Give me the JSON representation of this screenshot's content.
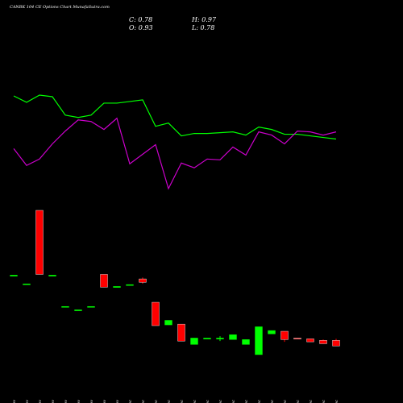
{
  "chart_data": {
    "type": "candlestick",
    "title": "CANBK 104 CE Options Chart MunafaSutra.com",
    "ohlc_labels": [
      "C: 0.78",
      "H: 0.97",
      "O: 0.93",
      "L: 0.78"
    ],
    "categories": [
      "17 Nov",
      "18 Nov",
      "19 Nov",
      "20 Nov",
      "21 Nov",
      "24 Nov",
      "25 Nov",
      "26 Nov",
      "27 Nov",
      "01 Dec",
      "02 Dec",
      "03 Dec",
      "04 Dec",
      "05 Dec",
      "08 Dec",
      "09 Dec",
      "12 Dec",
      "15 Dec",
      "16 Dec",
      "17 Dec",
      "18 Dec",
      "19 Dec",
      "22 Dec",
      "23 Dec",
      "24 Dec",
      "26 Dec"
    ],
    "open": [
      2.66,
      2.43,
      4.38,
      2.66,
      1.83,
      1.74,
      1.83,
      2.68,
      2.36,
      2.41,
      2.56,
      1.94,
      1.34,
      1.36,
      0.82,
      0.99,
      0.99,
      0.95,
      0.82,
      0.55,
      1.1,
      1.17,
      0.99,
      0.97,
      0.93,
      0.93
    ],
    "high": [
      2.66,
      2.43,
      4.38,
      2.66,
      1.83,
      1.74,
      1.83,
      2.68,
      2.36,
      2.41,
      2.6,
      1.94,
      1.46,
      1.36,
      0.99,
      0.99,
      1.04,
      1.08,
      0.95,
      1.29,
      1.19,
      1.17,
      0.99,
      0.97,
      0.95,
      0.97
    ],
    "low": [
      2.66,
      2.43,
      2.68,
      2.66,
      1.83,
      1.74,
      1.83,
      2.34,
      2.36,
      2.41,
      2.43,
      1.32,
      1.34,
      0.91,
      0.82,
      0.99,
      0.91,
      0.95,
      0.82,
      0.55,
      1.1,
      0.89,
      0.97,
      0.89,
      0.84,
      0.78
    ],
    "close": [
      2.66,
      2.43,
      2.68,
      2.66,
      1.83,
      1.74,
      1.83,
      2.34,
      2.36,
      2.41,
      2.47,
      1.32,
      1.46,
      0.91,
      0.99,
      0.99,
      0.99,
      1.08,
      0.95,
      1.29,
      1.19,
      0.95,
      0.97,
      0.89,
      0.84,
      0.78
    ],
    "up_color": "#00ff00",
    "down_color": "#ff0000",
    "lines": [
      {
        "color": "#00ff00",
        "values": [
          132,
          124,
          133,
          131,
          108,
          105,
          108,
          123,
          123,
          125,
          127,
          94,
          98,
          82,
          85,
          85,
          86,
          87,
          83,
          93,
          90,
          84,
          84,
          82,
          80,
          78
        ]
      },
      {
        "color": "#cc00cc",
        "values": [
          66,
          45,
          53,
          72,
          88,
          102,
          100,
          90,
          104,
          47,
          59,
          71,
          16,
          48,
          42,
          53,
          52,
          68,
          58,
          87,
          83,
          72,
          88,
          87,
          83,
          87
        ]
      }
    ]
  }
}
